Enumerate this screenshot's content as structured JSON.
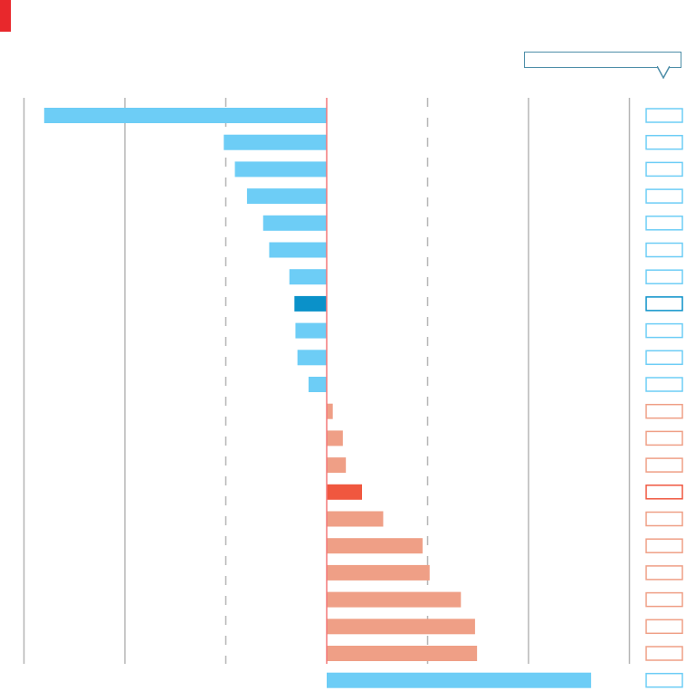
{
  "colors": {
    "brand": "#e8282c",
    "negative_bar": "#6dcdf6",
    "negative_highlight": "#0a91c9",
    "positive_bar": "#ef9f86",
    "positive_highlight": "#f0573f",
    "zero_line": "#f4787a",
    "gridline": "#b5b5b5",
    "dropdown_border": "#4e8ea8"
  },
  "title": "",
  "dropdown": {
    "selected": ""
  },
  "chart_data": {
    "type": "bar",
    "orientation": "horizontal",
    "title": "",
    "xlabel": "",
    "ylabel": "",
    "xlim": [
      -3,
      3
    ],
    "grid": true,
    "legend": "none",
    "categories": [
      "",
      "",
      "",
      "",
      "",
      "",
      "",
      "",
      "",
      "",
      "",
      "",
      "",
      "",
      "",
      "",
      "",
      "",
      "",
      "",
      "",
      ""
    ],
    "values": [
      -2.8,
      -1.02,
      -0.91,
      -0.79,
      -0.63,
      -0.57,
      -0.37,
      -0.32,
      -0.31,
      -0.29,
      -0.18,
      0.06,
      0.16,
      0.19,
      0.35,
      0.56,
      0.95,
      1.02,
      1.33,
      1.47,
      1.49,
      2.62
    ],
    "highlight_index": [
      7,
      14
    ],
    "reversed_series_index": [
      21
    ]
  }
}
